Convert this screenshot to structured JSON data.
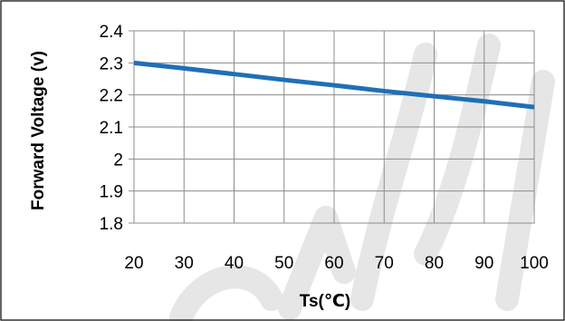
{
  "chart_data": {
    "type": "line",
    "title": "",
    "xlabel": "Ts(℃)",
    "ylabel": "Forward Voltage (v)",
    "x": [
      20,
      30,
      40,
      50,
      60,
      70,
      80,
      90,
      100
    ],
    "series": [
      {
        "values": [
          2.3,
          2.283,
          2.265,
          2.247,
          2.23,
          2.212,
          2.196,
          2.18,
          2.162
        ],
        "color": "#1f6fb7"
      }
    ],
    "xlim": [
      20,
      100
    ],
    "ylim": [
      1.8,
      2.4
    ],
    "xticks": [
      "20",
      "30",
      "40",
      "50",
      "60",
      "70",
      "80",
      "90",
      "100"
    ],
    "yticks": [
      "1.8",
      "1.9",
      "2",
      "2.1",
      "2.2",
      "2.3",
      "2.4"
    ],
    "grid": true,
    "legend": "none"
  },
  "colors": {
    "line": "#1f6fb7",
    "grid": "#8c8c8c",
    "frame": "#000000",
    "watermark": "#e6e6e6"
  }
}
